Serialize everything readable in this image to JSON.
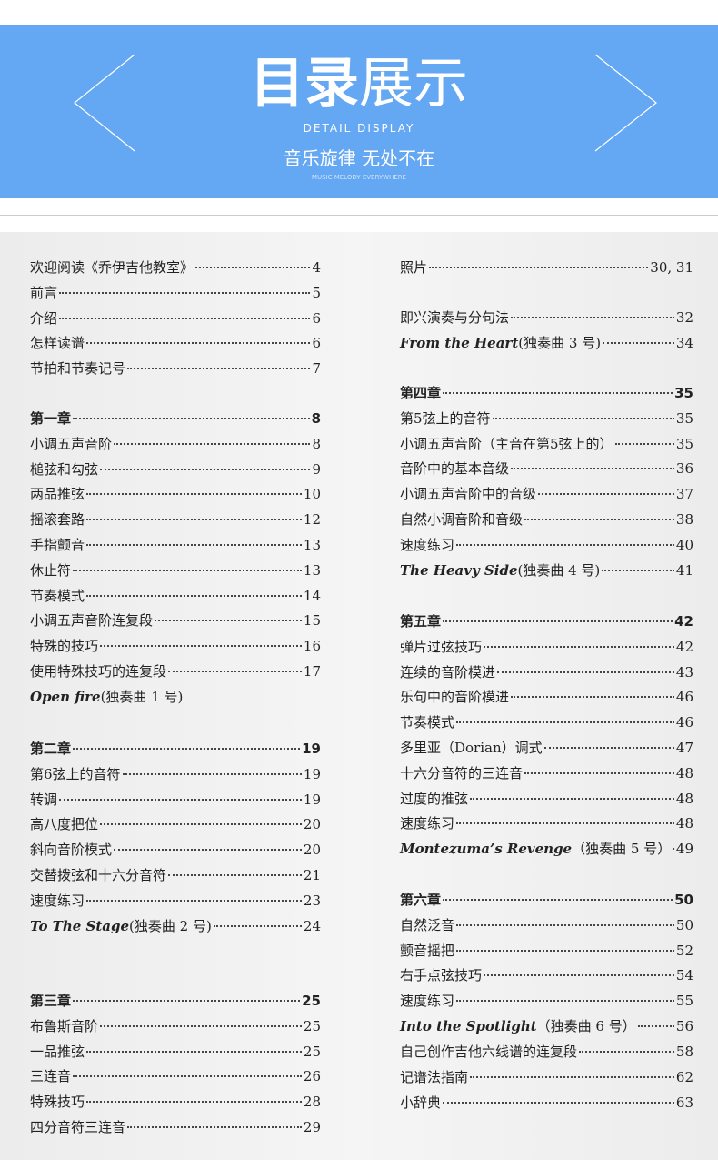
{
  "header": {
    "title": {
      "bold": "目录",
      "light": "展示"
    },
    "subtitle_en": "DETAIL DISPLAY",
    "slogan": "音乐旋律 无处不在",
    "slogan_en": "MUSIC MELODY EVERYWHERE"
  },
  "toc": {
    "left": [
      {
        "items": [
          {
            "title": "欢迎阅读《乔伊吉他教室》",
            "page": 4
          },
          {
            "title": "前言",
            "page": 5
          },
          {
            "title": "介绍",
            "page": 6
          },
          {
            "title": "怎样读谱",
            "page": 6
          },
          {
            "title": "节拍和节奏记号",
            "page": 7
          }
        ]
      },
      {
        "heading": {
          "title": "第一章",
          "page": 8
        },
        "items": [
          {
            "title": "小调五声音阶",
            "page": 8
          },
          {
            "title": "槌弦和勾弦",
            "page": 9
          },
          {
            "title": "两品推弦",
            "page": 10
          },
          {
            "title": "摇滚套路",
            "page": 12
          },
          {
            "title": "手指颤音",
            "page": 13
          },
          {
            "title": "休止符",
            "page": 13
          },
          {
            "title": "节奏模式",
            "page": 14
          },
          {
            "title": "小调五声音阶连复段",
            "page": 15
          },
          {
            "title": "特殊的技巧",
            "page": 16
          },
          {
            "title": "使用特殊技巧的连复段",
            "page": 17
          },
          {
            "en": "Open fire",
            "title": "(独奏曲 1 号)"
          }
        ]
      },
      {
        "heading": {
          "title": "第二章",
          "page": 19
        },
        "items": [
          {
            "title": "第6弦上的音符",
            "page": 19
          },
          {
            "title": "转调",
            "page": 19
          },
          {
            "title": "高八度把位",
            "page": 20
          },
          {
            "title": "斜向音阶模式",
            "page": 20
          },
          {
            "title": "交替拨弦和十六分音符",
            "page": 21
          },
          {
            "title": "速度练习",
            "page": 23
          },
          {
            "en": "To The Stage",
            "title": "(独奏曲 2 号)",
            "page": 24
          }
        ]
      },
      {
        "heading": {
          "title": "第三章",
          "page": 25
        },
        "items": [
          {
            "title": "布鲁斯音阶",
            "page": 25
          },
          {
            "title": "一品推弦",
            "page": 25
          },
          {
            "title": "三连音",
            "page": 26
          },
          {
            "title": "特殊技巧",
            "page": 28
          },
          {
            "title": "四分音符三连音",
            "page": 29
          }
        ]
      }
    ],
    "right": [
      {
        "items": [
          {
            "title": "照片",
            "page": "30, 31"
          }
        ]
      },
      {
        "items": [
          {
            "title": "即兴演奏与分句法",
            "page": 32
          },
          {
            "en": "From the Heart",
            "title": "(独奏曲 3 号)",
            "page": 34
          }
        ]
      },
      {
        "heading": {
          "title": "第四章",
          "page": 35
        },
        "items": [
          {
            "title": "第5弦上的音符",
            "page": 35
          },
          {
            "title": "小调五声音阶（主音在第5弦上的）",
            "page": 35
          },
          {
            "title": "音阶中的基本音级",
            "page": 36
          },
          {
            "title": "小调五声音阶中的音级",
            "page": 37
          },
          {
            "title": "自然小调音阶和音级",
            "page": 38
          },
          {
            "title": "速度练习",
            "page": 40
          },
          {
            "en": "The Heavy Side",
            "title": "(独奏曲 4 号)",
            "page": 41
          }
        ]
      },
      {
        "heading": {
          "title": "第五章",
          "page": 42
        },
        "items": [
          {
            "title": "弹片过弦技巧",
            "page": 42
          },
          {
            "title": "连续的音阶模进",
            "page": 43
          },
          {
            "title": "乐句中的音阶模进",
            "page": 46
          },
          {
            "title": "节奏模式",
            "page": 46
          },
          {
            "title": "多里亚（Dorian）调式",
            "page": 47
          },
          {
            "title": "十六分音符的三连音",
            "page": 48
          },
          {
            "title": "过度的推弦",
            "page": 48
          },
          {
            "title": "速度练习",
            "page": 48
          },
          {
            "en": "Montezuma’s Revenge",
            "title": "（独奏曲 5 号）",
            "page": 49
          }
        ]
      },
      {
        "heading": {
          "title": "第六章",
          "page": 50
        },
        "items": [
          {
            "title": "自然泛音",
            "page": 50
          },
          {
            "title": "颤音摇把",
            "page": 52
          },
          {
            "title": "右手点弦技巧",
            "page": 54
          },
          {
            "title": "速度练习",
            "page": 55
          },
          {
            "en": "Into the Spotlight",
            "title": "（独奏曲 6 号）",
            "page": 56
          }
        ]
      },
      {
        "items": [
          {
            "title": "自己创作吉他六线谱的连复段",
            "page": 58
          },
          {
            "title": "记谱法指南",
            "page": 62
          },
          {
            "title": "小辞典",
            "page": 63
          }
        ]
      }
    ]
  }
}
